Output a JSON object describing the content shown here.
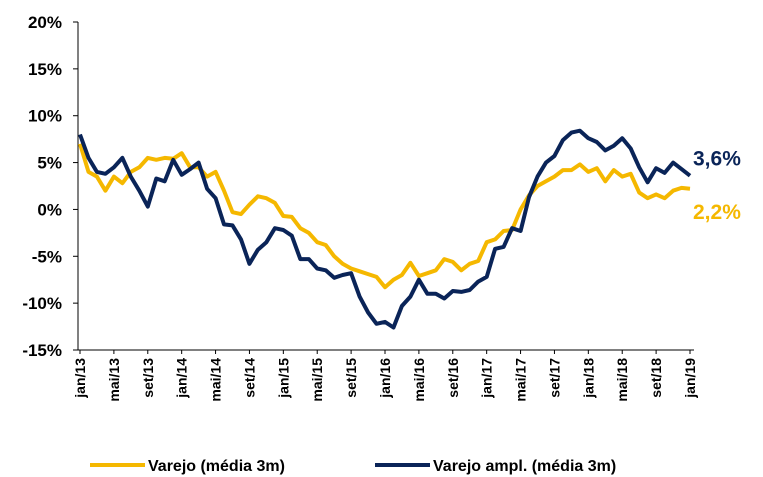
{
  "chart_data": {
    "type": "line",
    "categories": [
      "jan/13",
      null,
      null,
      null,
      "mai/13",
      null,
      null,
      null,
      "set/13",
      null,
      null,
      null,
      "jan/14",
      null,
      null,
      null,
      "mai/14",
      null,
      null,
      null,
      "set/14",
      null,
      null,
      null,
      "jan/15",
      null,
      null,
      null,
      "mai/15",
      null,
      null,
      null,
      "set/15",
      null,
      null,
      null,
      "jan/16",
      null,
      null,
      null,
      "mai/16",
      null,
      null,
      null,
      "set/16",
      null,
      null,
      null,
      "jan/17",
      null,
      null,
      null,
      "mai/17",
      null,
      null,
      null,
      "set/17",
      null,
      null,
      null,
      "jan/18",
      null,
      null,
      null,
      "mai/18",
      null,
      null,
      null,
      "set/18",
      null,
      null,
      null,
      "jan/19"
    ],
    "series": [
      {
        "name": "Varejo (média 3m)",
        "color": "#f5b800",
        "values": [
          7,
          4,
          3.5,
          2,
          3.5,
          2.8,
          4,
          4.5,
          5.5,
          5.3,
          5.5,
          5.4,
          6,
          4.5,
          4.5,
          3.5,
          4,
          2,
          -0.3,
          -0.5,
          0.5,
          1.4,
          1.2,
          0.7,
          -0.7,
          -0.8,
          -2,
          -2.5,
          -3.5,
          -3.8,
          -5,
          -5.8,
          -6.3,
          -6.6,
          -6.9,
          -7.2,
          -8.3,
          -7.5,
          -7,
          -5.7,
          -7.1,
          -6.8,
          -6.5,
          -5.3,
          -5.6,
          -6.5,
          -5.8,
          -5.5,
          -3.5,
          -3.2,
          -2.3,
          -2.2,
          0,
          1.5,
          2.5,
          3,
          3.5,
          4.2,
          4.2,
          4.8,
          4,
          4.4,
          3,
          4.2,
          3.5,
          3.8,
          1.8,
          1.2,
          1.6,
          1.2,
          2,
          2.3,
          2.2
        ],
        "value_labels": [
          null,
          null,
          null,
          null,
          null,
          null,
          null,
          null,
          null,
          null,
          null,
          null,
          null,
          null,
          null,
          null,
          null,
          null,
          null,
          null,
          null,
          null,
          null,
          null,
          null,
          null,
          null,
          null,
          null,
          null,
          null,
          null,
          null,
          null,
          null,
          null,
          null,
          null,
          null,
          null,
          null,
          null,
          null,
          null,
          null,
          null,
          null,
          null,
          null,
          null,
          null,
          null,
          null,
          null,
          null,
          null,
          null,
          null,
          null,
          null,
          null,
          null,
          null,
          null,
          null,
          null,
          null,
          null,
          null,
          null,
          null,
          null,
          "2,2%"
        ]
      },
      {
        "name": "Varejo ampl. (média 3m)",
        "color": "#0a2458",
        "values": [
          8,
          5.5,
          4,
          3.8,
          4.5,
          5.5,
          3.5,
          2,
          0.3,
          3.3,
          3,
          5.3,
          3.7,
          4.3,
          5,
          2.2,
          1.2,
          -1.6,
          -1.7,
          -3.2,
          -5.8,
          -4.3,
          -3.5,
          -2,
          -2.2,
          -2.8,
          -5.3,
          -5.3,
          -6.3,
          -6.5,
          -7.3,
          -7,
          -6.8,
          -9.3,
          -11,
          -12.2,
          -12,
          -12.6,
          -10.3,
          -9.3,
          -7.5,
          -9,
          -9,
          -9.5,
          -8.7,
          -8.8,
          -8.6,
          -7.7,
          -7.2,
          -4.2,
          -4,
          -2,
          -2.3,
          1.3,
          3.5,
          5,
          5.7,
          7.4,
          8.2,
          8.4,
          7.6,
          7.2,
          6.3,
          6.8,
          7.6,
          6.5,
          4.5,
          2.9,
          4.4,
          3.9,
          5,
          4.3,
          3.6
        ],
        "value_labels": [
          null,
          null,
          null,
          null,
          null,
          null,
          null,
          null,
          null,
          null,
          null,
          null,
          null,
          null,
          null,
          null,
          null,
          null,
          null,
          null,
          null,
          null,
          null,
          null,
          null,
          null,
          null,
          null,
          null,
          null,
          null,
          null,
          null,
          null,
          null,
          null,
          null,
          null,
          null,
          null,
          null,
          null,
          null,
          null,
          null,
          null,
          null,
          null,
          null,
          null,
          null,
          null,
          null,
          null,
          null,
          null,
          null,
          null,
          null,
          null,
          null,
          null,
          null,
          null,
          null,
          null,
          null,
          null,
          null,
          null,
          null,
          null,
          "3,6%"
        ]
      }
    ],
    "ylim": [
      -15,
      20
    ],
    "yticks": [
      {
        "value": -15,
        "label": "-15%"
      },
      {
        "value": -10,
        "label": "-10%"
      },
      {
        "value": -5,
        "label": "-5%"
      },
      {
        "value": 0,
        "label": "0%"
      },
      {
        "value": 5,
        "label": "5%"
      },
      {
        "value": 10,
        "label": "10%"
      },
      {
        "value": 15,
        "label": "15%"
      },
      {
        "value": 20,
        "label": "20%"
      }
    ],
    "grid": false,
    "legend": "bottom"
  }
}
